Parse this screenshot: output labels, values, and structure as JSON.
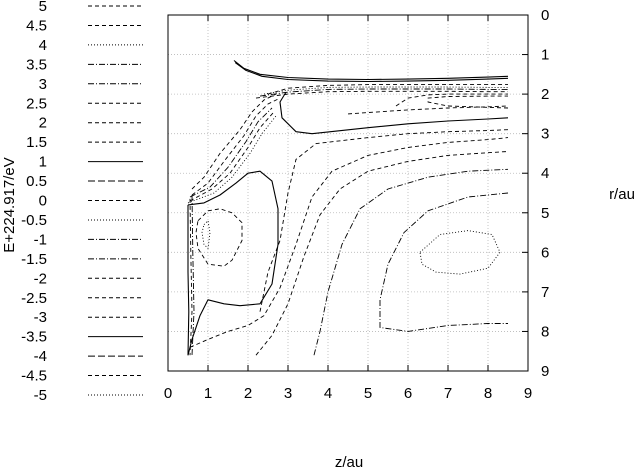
{
  "chart_data": {
    "type": "contour",
    "title": "",
    "xlabel": "z/au",
    "ylabel": "E+224.917/eV",
    "y2label": "r/au",
    "xlim": [
      0,
      9
    ],
    "ylim_right": [
      0,
      9
    ],
    "right_axis_inverted": true,
    "grid": true,
    "legend_position": "left",
    "x_ticks": [
      "0",
      "1",
      "2",
      "3",
      "4",
      "5",
      "6",
      "7",
      "8",
      "9"
    ],
    "r_ticks": [
      "0",
      "1",
      "2",
      "3",
      "4",
      "5",
      "6",
      "7",
      "8",
      "9"
    ],
    "contour_levels": [
      {
        "label": "5",
        "style": "dashed"
      },
      {
        "label": "4.5",
        "style": "dashed"
      },
      {
        "label": "4",
        "style": "dotted"
      },
      {
        "label": "3.5",
        "style": "dashdot"
      },
      {
        "label": "3",
        "style": "dashdot"
      },
      {
        "label": "2.5",
        "style": "dashed"
      },
      {
        "label": "2",
        "style": "dashed"
      },
      {
        "label": "1.5",
        "style": "dashed"
      },
      {
        "label": "1",
        "style": "solid"
      },
      {
        "label": "0.5",
        "style": "longdash"
      },
      {
        "label": "0",
        "style": "dashed"
      },
      {
        "label": "-0.5",
        "style": "dotted"
      },
      {
        "label": "-1",
        "style": "dashdot"
      },
      {
        "label": "-1.5",
        "style": "dashdot"
      },
      {
        "label": "-2",
        "style": "dashed"
      },
      {
        "label": "-2.5",
        "style": "dashed"
      },
      {
        "label": "-3",
        "style": "dashed"
      },
      {
        "label": "-3.5",
        "style": "solid"
      },
      {
        "label": "-4",
        "style": "longdash"
      },
      {
        "label": "-4.5",
        "style": "dashed"
      },
      {
        "label": "-5",
        "style": "dotted"
      }
    ],
    "curves": [
      {
        "style": "solid",
        "points": [
          [
            1.65,
            1.15
          ],
          [
            1.9,
            1.35
          ],
          [
            2.3,
            1.5
          ],
          [
            3,
            1.58
          ],
          [
            4,
            1.62
          ],
          [
            5,
            1.63
          ],
          [
            6,
            1.62
          ],
          [
            7,
            1.6
          ],
          [
            8,
            1.57
          ],
          [
            8.5,
            1.55
          ]
        ]
      },
      {
        "style": "solid",
        "points": [
          [
            1.68,
            1.2
          ],
          [
            1.95,
            1.4
          ],
          [
            2.35,
            1.55
          ],
          [
            3,
            1.63
          ],
          [
            4,
            1.67
          ],
          [
            5,
            1.68
          ],
          [
            6,
            1.67
          ],
          [
            7,
            1.65
          ],
          [
            8,
            1.62
          ],
          [
            8.5,
            1.6
          ]
        ]
      },
      {
        "style": "dashed",
        "points": [
          [
            2.5,
            2.0
          ],
          [
            3,
            1.85
          ],
          [
            4,
            1.78
          ],
          [
            5,
            1.76
          ],
          [
            6,
            1.76
          ],
          [
            7,
            1.76
          ],
          [
            8,
            1.76
          ],
          [
            8.5,
            1.76
          ]
        ]
      },
      {
        "style": "dotted",
        "points": [
          [
            2.4,
            2.0
          ],
          [
            3,
            1.9
          ],
          [
            4,
            1.83
          ],
          [
            5,
            1.82
          ],
          [
            6,
            1.82
          ],
          [
            7,
            1.82
          ],
          [
            8,
            1.83
          ],
          [
            8.5,
            1.83
          ]
        ]
      },
      {
        "style": "dashdot",
        "points": [
          [
            2.3,
            2.05
          ],
          [
            3,
            1.95
          ],
          [
            4,
            1.88
          ],
          [
            5,
            1.87
          ],
          [
            6,
            1.87
          ],
          [
            7,
            1.87
          ],
          [
            8,
            1.88
          ],
          [
            8.5,
            1.88
          ]
        ]
      },
      {
        "style": "dashed",
        "points": [
          [
            2.2,
            2.1
          ],
          [
            3,
            2.0
          ],
          [
            4,
            1.94
          ],
          [
            5,
            1.93
          ],
          [
            6,
            1.93
          ],
          [
            7,
            1.93
          ],
          [
            8,
            1.94
          ],
          [
            8.5,
            1.94
          ]
        ]
      },
      {
        "style": "dashed",
        "points": [
          [
            5.7,
            2.3
          ],
          [
            6,
            2.1
          ],
          [
            6.5,
            2.02
          ],
          [
            7,
            2.0
          ],
          [
            7.5,
            2.0
          ],
          [
            8,
            2.0
          ],
          [
            8.5,
            2.0
          ]
        ]
      },
      {
        "style": "dashed",
        "points": [
          [
            8.5,
            2.35
          ],
          [
            7,
            2.3
          ],
          [
            6.5,
            2.2
          ],
          [
            6.5,
            2.1
          ],
          [
            7,
            2.06
          ],
          [
            8,
            2.05
          ],
          [
            8.5,
            2.05
          ]
        ]
      },
      {
        "style": "solid",
        "points": [
          [
            2.95,
            1.95
          ],
          [
            2.8,
            2.2
          ],
          [
            2.85,
            2.6
          ],
          [
            3.2,
            2.95
          ],
          [
            3.6,
            3.0
          ],
          [
            5,
            2.85
          ],
          [
            6,
            2.75
          ],
          [
            7,
            2.68
          ],
          [
            8,
            2.63
          ],
          [
            8.5,
            2.6
          ]
        ]
      },
      {
        "style": "dashed",
        "points": [
          [
            4.5,
            2.5
          ],
          [
            6,
            2.4
          ],
          [
            7,
            2.35
          ],
          [
            8,
            2.32
          ],
          [
            8.5,
            2.3
          ]
        ]
      },
      {
        "style": "dashed",
        "points": [
          [
            0.6,
            4.4
          ],
          [
            0.9,
            4.1
          ],
          [
            1.3,
            3.5
          ],
          [
            1.8,
            2.9
          ],
          [
            2.1,
            2.45
          ],
          [
            2.4,
            2.15
          ],
          [
            2.7,
            2.0
          ]
        ]
      },
      {
        "style": "dashed",
        "points": [
          [
            0.6,
            4.55
          ],
          [
            1.0,
            4.25
          ],
          [
            1.4,
            3.7
          ],
          [
            1.9,
            3.05
          ],
          [
            2.2,
            2.55
          ],
          [
            2.5,
            2.25
          ],
          [
            2.8,
            2.1
          ]
        ]
      },
      {
        "style": "dashdot",
        "points": [
          [
            0.55,
            4.6
          ],
          [
            1.05,
            4.35
          ],
          [
            1.5,
            3.85
          ],
          [
            1.95,
            3.2
          ],
          [
            2.25,
            2.7
          ],
          [
            2.6,
            2.35
          ]
        ]
      },
      {
        "style": "dashed",
        "points": [
          [
            0.55,
            4.7
          ],
          [
            1.1,
            4.4
          ],
          [
            1.55,
            4.0
          ],
          [
            2.0,
            3.35
          ],
          [
            2.3,
            2.85
          ],
          [
            2.65,
            2.45
          ]
        ]
      },
      {
        "style": "dotted",
        "points": [
          [
            0.5,
            4.75
          ],
          [
            1.15,
            4.5
          ],
          [
            1.6,
            4.1
          ],
          [
            2.05,
            3.5
          ],
          [
            2.35,
            3.0
          ],
          [
            2.7,
            2.55
          ]
        ]
      },
      {
        "style": "solid",
        "points": [
          [
            0.5,
            4.8
          ],
          [
            0.9,
            4.75
          ],
          [
            1.3,
            4.55
          ],
          [
            1.7,
            4.25
          ],
          [
            2.0,
            4.0
          ],
          [
            2.3,
            3.95
          ],
          [
            2.6,
            4.2
          ],
          [
            2.75,
            4.9
          ],
          [
            2.75,
            5.8
          ],
          [
            2.6,
            6.8
          ],
          [
            2.3,
            7.3
          ],
          [
            1.8,
            7.35
          ],
          [
            1.4,
            7.3
          ],
          [
            1.0,
            7.2
          ],
          [
            0.8,
            7.6
          ],
          [
            0.6,
            8.2
          ],
          [
            0.5,
            8.6
          ]
        ]
      },
      {
        "style": "dashed",
        "points": [
          [
            0.75,
            5.2
          ],
          [
            1.0,
            4.95
          ],
          [
            1.3,
            4.9
          ],
          [
            1.6,
            5.0
          ],
          [
            1.85,
            5.25
          ],
          [
            1.85,
            5.7
          ],
          [
            1.6,
            6.2
          ],
          [
            1.4,
            6.35
          ],
          [
            1.0,
            6.3
          ],
          [
            0.75,
            5.9
          ],
          [
            0.7,
            5.5
          ],
          [
            0.75,
            5.2
          ]
        ]
      },
      {
        "style": "dotted",
        "points": [
          [
            0.9,
            5.3
          ],
          [
            1.0,
            5.2
          ],
          [
            1.05,
            5.5
          ],
          [
            1.0,
            5.9
          ],
          [
            0.9,
            5.8
          ],
          [
            0.85,
            5.5
          ],
          [
            0.9,
            5.3
          ]
        ]
      },
      {
        "style": "dashed",
        "points": [
          [
            2.3,
            7.5
          ],
          [
            2.5,
            6.5
          ],
          [
            2.8,
            5.7
          ],
          [
            3.0,
            4.5
          ],
          [
            3.2,
            3.65
          ],
          [
            3.7,
            3.25
          ],
          [
            5,
            3.1
          ],
          [
            6,
            3.0
          ],
          [
            7,
            2.95
          ],
          [
            8,
            2.92
          ],
          [
            8.5,
            2.9
          ]
        ]
      },
      {
        "style": "dashed",
        "points": [
          [
            0.55,
            8.4
          ],
          [
            1.0,
            8.2
          ],
          [
            1.5,
            8.0
          ],
          [
            2.0,
            7.85
          ],
          [
            2.4,
            7.6
          ],
          [
            2.8,
            6.9
          ],
          [
            3.2,
            5.8
          ],
          [
            3.6,
            4.6
          ],
          [
            4.1,
            3.95
          ],
          [
            5,
            3.55
          ],
          [
            6,
            3.35
          ],
          [
            7,
            3.22
          ],
          [
            8,
            3.15
          ],
          [
            8.5,
            3.1
          ]
        ]
      },
      {
        "style": "dashed",
        "points": [
          [
            2.2,
            8.6
          ],
          [
            2.6,
            8.1
          ],
          [
            3.0,
            7.3
          ],
          [
            3.4,
            6.1
          ],
          [
            3.8,
            5.05
          ],
          [
            4.3,
            4.4
          ],
          [
            5,
            3.95
          ],
          [
            6,
            3.7
          ],
          [
            7,
            3.55
          ],
          [
            8,
            3.48
          ],
          [
            8.5,
            3.45
          ]
        ]
      },
      {
        "style": "dashdot",
        "points": [
          [
            3.65,
            8.6
          ],
          [
            3.8,
            8.0
          ],
          [
            4.0,
            7.0
          ],
          [
            4.35,
            5.8
          ],
          [
            4.8,
            4.9
          ],
          [
            5.5,
            4.4
          ],
          [
            6.5,
            4.1
          ],
          [
            7.5,
            3.95
          ],
          [
            8.5,
            3.9
          ]
        ]
      },
      {
        "style": "dashdot",
        "points": [
          [
            8.5,
            4.5
          ],
          [
            7.5,
            4.6
          ],
          [
            6.5,
            4.95
          ],
          [
            5.9,
            5.5
          ],
          [
            5.5,
            6.3
          ],
          [
            5.3,
            7.2
          ],
          [
            5.3,
            7.9
          ],
          [
            6.0,
            8.0
          ],
          [
            7.0,
            7.85
          ],
          [
            8.0,
            7.8
          ],
          [
            8.5,
            7.8
          ]
        ]
      },
      {
        "style": "dotted",
        "points": [
          [
            6.3,
            6.0
          ],
          [
            6.8,
            5.55
          ],
          [
            7.5,
            5.45
          ],
          [
            8.1,
            5.55
          ],
          [
            8.3,
            6.0
          ],
          [
            8.0,
            6.4
          ],
          [
            7.3,
            6.55
          ],
          [
            6.7,
            6.5
          ],
          [
            6.35,
            6.3
          ],
          [
            6.3,
            6.0
          ]
        ]
      },
      {
        "style": "solid",
        "points": [
          [
            0.5,
            4.8
          ],
          [
            0.5,
            6.5
          ],
          [
            0.52,
            7.5
          ],
          [
            0.5,
            8.6
          ]
        ]
      },
      {
        "style": "dashed",
        "points": [
          [
            0.55,
            4.65
          ],
          [
            0.57,
            6.0
          ],
          [
            0.6,
            7.5
          ],
          [
            0.55,
            8.6
          ]
        ]
      },
      {
        "style": "dashdot",
        "points": [
          [
            0.6,
            4.55
          ],
          [
            0.62,
            6.0
          ],
          [
            0.65,
            7.5
          ],
          [
            0.6,
            8.6
          ]
        ]
      }
    ]
  }
}
